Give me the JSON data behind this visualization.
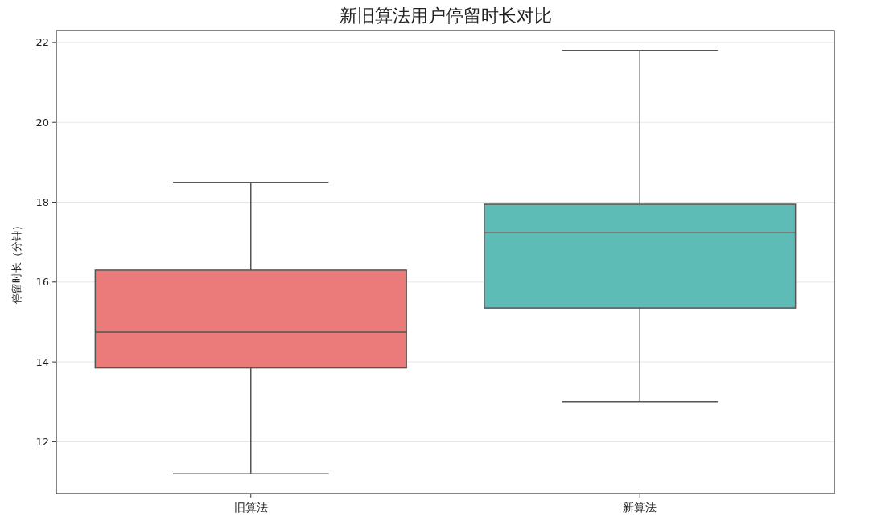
{
  "chart_data": {
    "type": "box",
    "title": "新旧算法用户停留时长对比",
    "ylabel": "停留时长（分钟）",
    "categories": [
      "旧算法",
      "新算法"
    ],
    "colors": [
      "#eb7b7a",
      "#5ebcb7"
    ],
    "boxes": [
      {
        "low": 11.2,
        "q1": 13.85,
        "median": 14.75,
        "q3": 16.3,
        "high": 18.5
      },
      {
        "low": 13.0,
        "q1": 15.35,
        "median": 17.25,
        "q3": 17.95,
        "high": 21.8
      }
    ],
    "ylim": [
      10.7,
      22.3
    ],
    "yticks": [
      12,
      14,
      16,
      18,
      20,
      22
    ],
    "grid": "y"
  }
}
